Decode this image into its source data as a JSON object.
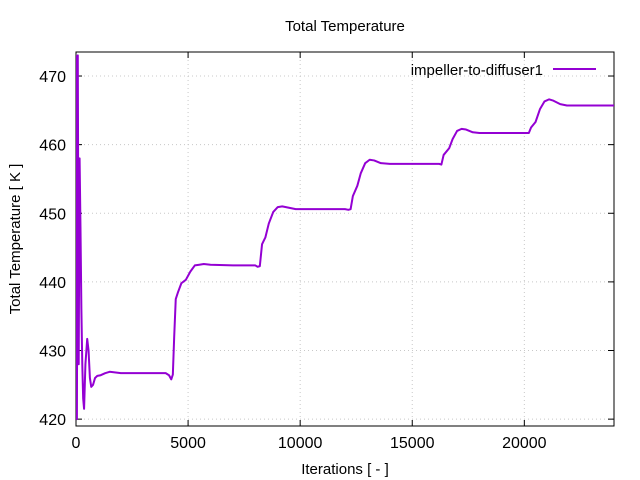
{
  "chart_data": {
    "type": "line",
    "title": "Total Temperature",
    "xlabel": "Iterations [ - ]",
    "ylabel": "Total Temperature [ K ]",
    "xlim": [
      0,
      24000
    ],
    "ylim": [
      419,
      473.5
    ],
    "x_ticks": [
      0,
      5000,
      10000,
      15000,
      20000
    ],
    "x_tick_labels": [
      "0",
      "5000",
      "10000",
      "15000",
      "20000"
    ],
    "y_ticks": [
      420,
      430,
      440,
      450,
      460,
      470
    ],
    "y_tick_labels": [
      "420",
      "430",
      "440",
      "450",
      "460",
      "470"
    ],
    "grid": true,
    "legend_position": "top-right",
    "series": [
      {
        "name": "impeller-to-diffuser1",
        "color": "#9400d3",
        "points": [
          [
            0,
            473
          ],
          [
            40,
            420
          ],
          [
            80,
            473
          ],
          [
            120,
            428
          ],
          [
            160,
            458
          ],
          [
            200,
            448
          ],
          [
            240,
            436
          ],
          [
            280,
            428
          ],
          [
            320,
            423
          ],
          [
            360,
            421.5
          ],
          [
            420,
            428
          ],
          [
            500,
            431.7
          ],
          [
            560,
            430
          ],
          [
            620,
            426
          ],
          [
            680,
            424.7
          ],
          [
            760,
            425
          ],
          [
            850,
            426
          ],
          [
            950,
            426.3
          ],
          [
            1100,
            426.4
          ],
          [
            1300,
            426.7
          ],
          [
            1500,
            426.9
          ],
          [
            2000,
            426.7
          ],
          [
            3000,
            426.7
          ],
          [
            4000,
            426.7
          ],
          [
            4150,
            426.4
          ],
          [
            4250,
            425.8
          ],
          [
            4320,
            426.5
          ],
          [
            4380,
            432
          ],
          [
            4450,
            437.5
          ],
          [
            4550,
            438.5
          ],
          [
            4700,
            439.8
          ],
          [
            4900,
            440.3
          ],
          [
            5100,
            441.5
          ],
          [
            5300,
            442.4
          ],
          [
            5500,
            442.5
          ],
          [
            5700,
            442.6
          ],
          [
            6000,
            442.5
          ],
          [
            7000,
            442.4
          ],
          [
            8000,
            442.4
          ],
          [
            8100,
            442.2
          ],
          [
            8200,
            442.3
          ],
          [
            8300,
            445.5
          ],
          [
            8450,
            446.5
          ],
          [
            8600,
            448.5
          ],
          [
            8800,
            450.2
          ],
          [
            9000,
            450.9
          ],
          [
            9200,
            451.0
          ],
          [
            9500,
            450.8
          ],
          [
            9800,
            450.6
          ],
          [
            10500,
            450.6
          ],
          [
            12000,
            450.6
          ],
          [
            12150,
            450.5
          ],
          [
            12250,
            450.6
          ],
          [
            12350,
            452.5
          ],
          [
            12550,
            454
          ],
          [
            12700,
            455.8
          ],
          [
            12900,
            457.3
          ],
          [
            13100,
            457.8
          ],
          [
            13300,
            457.7
          ],
          [
            13600,
            457.3
          ],
          [
            14000,
            457.2
          ],
          [
            15000,
            457.2
          ],
          [
            16200,
            457.2
          ],
          [
            16300,
            457.1
          ],
          [
            16400,
            458.5
          ],
          [
            16650,
            459.5
          ],
          [
            16800,
            460.8
          ],
          [
            17000,
            462
          ],
          [
            17200,
            462.3
          ],
          [
            17400,
            462.2
          ],
          [
            17700,
            461.8
          ],
          [
            18000,
            461.7
          ],
          [
            19000,
            461.7
          ],
          [
            20200,
            461.7
          ],
          [
            20300,
            462.5
          ],
          [
            20500,
            463.3
          ],
          [
            20700,
            465.2
          ],
          [
            20900,
            466.3
          ],
          [
            21100,
            466.6
          ],
          [
            21300,
            466.4
          ],
          [
            21600,
            465.9
          ],
          [
            21900,
            465.7
          ],
          [
            23000,
            465.7
          ],
          [
            24000,
            465.7
          ]
        ]
      }
    ]
  }
}
